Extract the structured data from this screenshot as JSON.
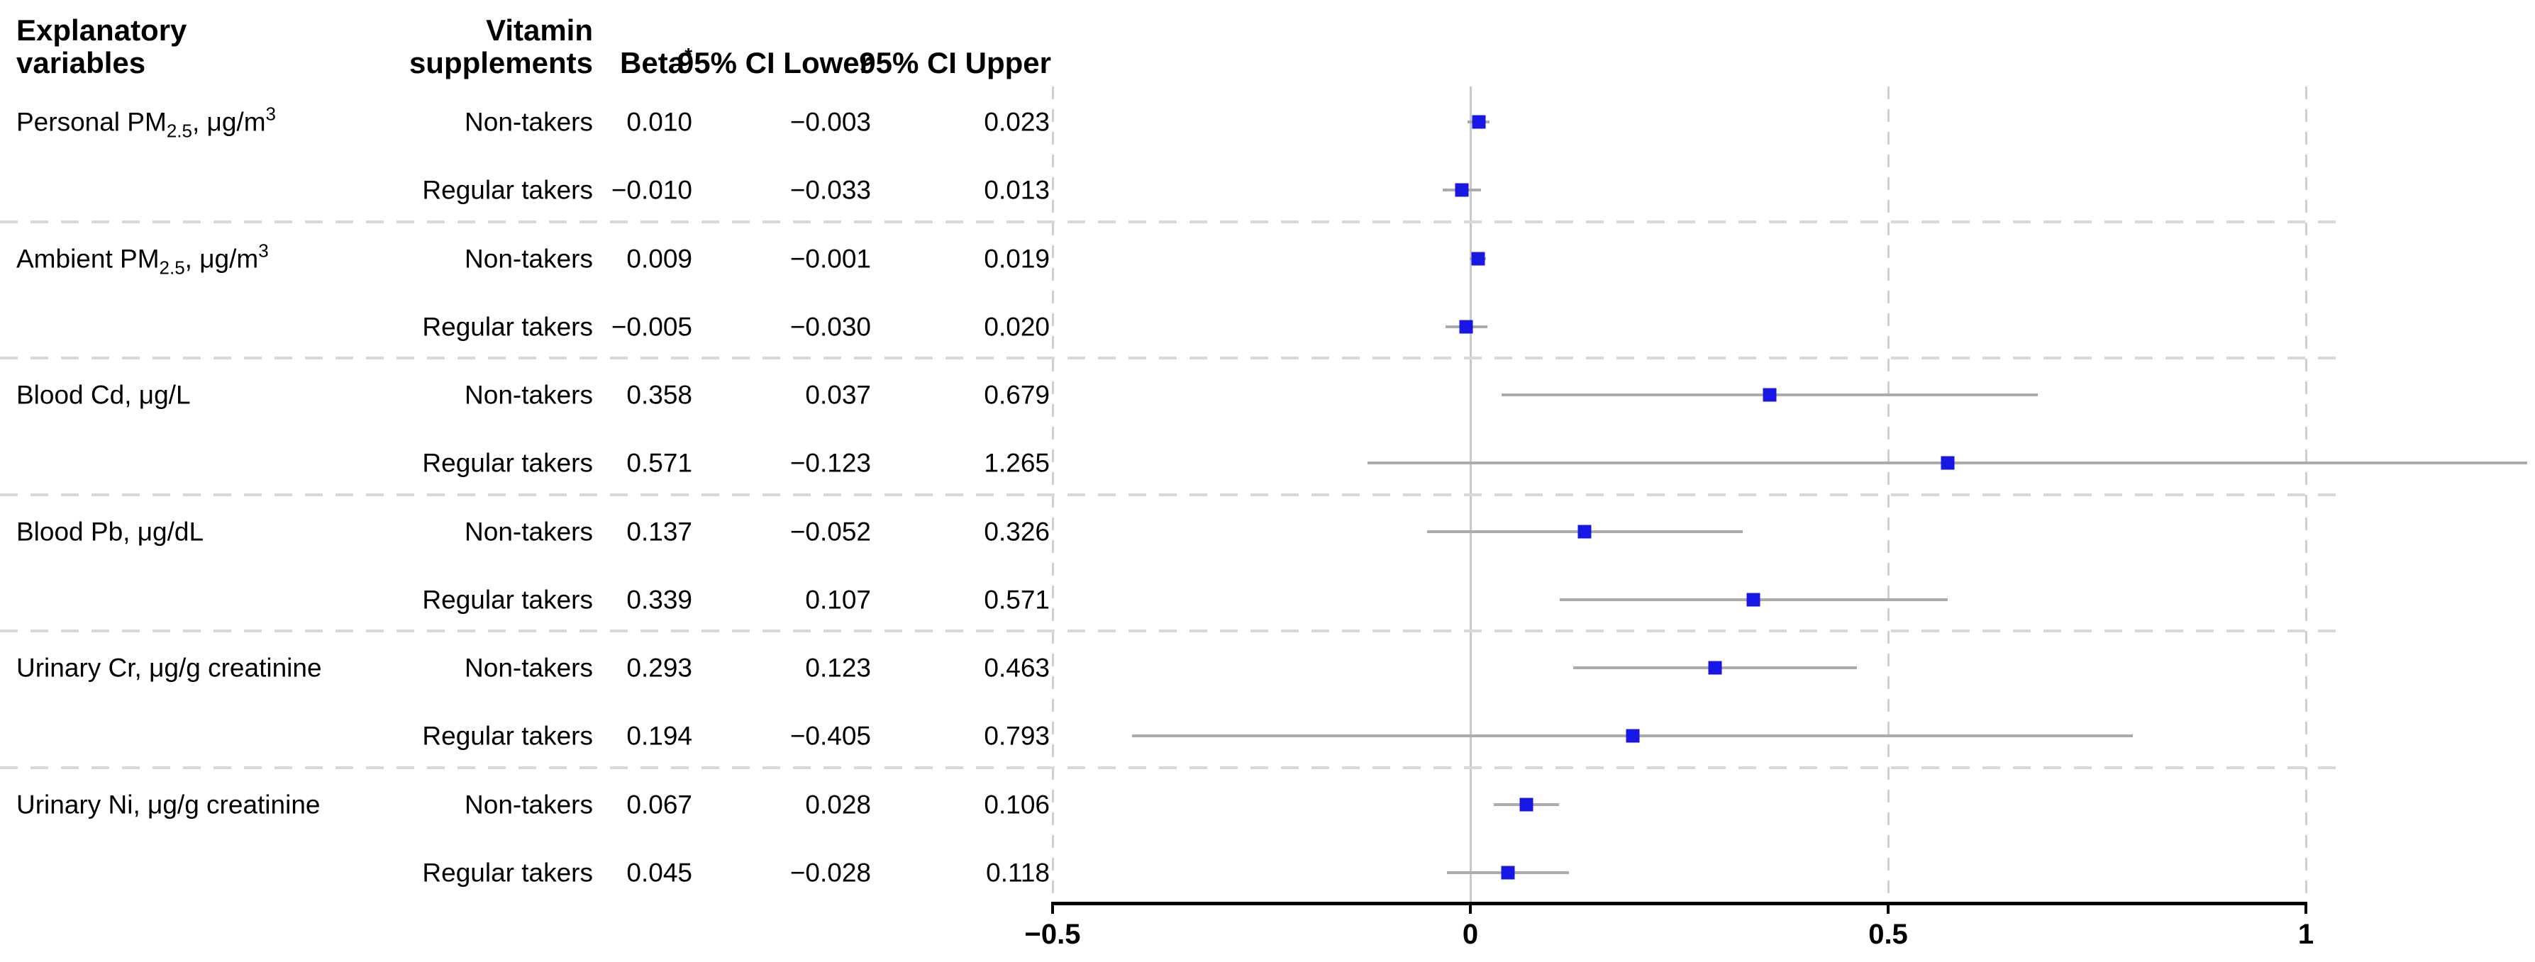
{
  "figure": {
    "header": {
      "explanatory_line1": "Explanatory",
      "explanatory_line2": "variables",
      "vitamin_line1": "Vitamin",
      "vitamin_line2": "supplements",
      "beta": "Beta",
      "beta_sup": "*",
      "ci_lower": "95% CI Lower",
      "ci_upper": "95% CI Upper"
    },
    "colors": {
      "marker": "#1717e6",
      "ci_line": "#ababab",
      "zero_line": "#c8c8c8",
      "grid_dash": "#cfcfcf",
      "separator": "#d8d8d8",
      "axis": "#000000",
      "text": "#000000"
    }
  },
  "chart_data": {
    "type": "forest",
    "title": "",
    "xlabel": "",
    "ylabel": "",
    "x_axis": {
      "tick_values": [
        -0.5,
        0,
        0.5,
        1
      ],
      "tick_labels": [
        "−0.5",
        "0",
        "0.5",
        "1"
      ],
      "range": [
        -0.5,
        1.27
      ],
      "reference_line": 0,
      "grid": "dashed vertical lines at -0.5, 0.5 and 1; solid light line at 0; dashed horizontal separators between variable groups"
    },
    "legend": null,
    "groups": [
      {
        "variable": {
          "pre": "Personal PM",
          "sub": "2.5",
          "mid": ", μg/m",
          "sup": "3"
        },
        "rows": [
          {
            "group": "Non-takers",
            "beta": 0.01,
            "ci_lower": -0.003,
            "ci_upper": 0.023,
            "beta_label": "0.010",
            "ci_lower_label": "−0.003",
            "ci_upper_label": "0.023"
          },
          {
            "group": "Regular takers",
            "beta": -0.01,
            "ci_lower": -0.033,
            "ci_upper": 0.013,
            "beta_label": "−0.010",
            "ci_lower_label": "−0.033",
            "ci_upper_label": "0.013"
          }
        ]
      },
      {
        "variable": {
          "pre": "Ambient PM",
          "sub": "2.5",
          "mid": ", μg/m",
          "sup": "3"
        },
        "rows": [
          {
            "group": "Non-takers",
            "beta": 0.009,
            "ci_lower": -0.001,
            "ci_upper": 0.019,
            "beta_label": "0.009",
            "ci_lower_label": "−0.001",
            "ci_upper_label": "0.019"
          },
          {
            "group": "Regular takers",
            "beta": -0.005,
            "ci_lower": -0.03,
            "ci_upper": 0.02,
            "beta_label": "−0.005",
            "ci_lower_label": "−0.030",
            "ci_upper_label": "0.020"
          }
        ]
      },
      {
        "variable": {
          "pre": "Blood Cd, μg/L",
          "sub": "",
          "mid": "",
          "sup": ""
        },
        "rows": [
          {
            "group": "Non-takers",
            "beta": 0.358,
            "ci_lower": 0.037,
            "ci_upper": 0.679,
            "beta_label": "0.358",
            "ci_lower_label": "0.037",
            "ci_upper_label": "0.679"
          },
          {
            "group": "Regular takers",
            "beta": 0.571,
            "ci_lower": -0.123,
            "ci_upper": 1.265,
            "beta_label": "0.571",
            "ci_lower_label": "−0.123",
            "ci_upper_label": "1.265"
          }
        ]
      },
      {
        "variable": {
          "pre": "Blood Pb, μg/dL",
          "sub": "",
          "mid": "",
          "sup": ""
        },
        "rows": [
          {
            "group": "Non-takers",
            "beta": 0.137,
            "ci_lower": -0.052,
            "ci_upper": 0.326,
            "beta_label": "0.137",
            "ci_lower_label": "−0.052",
            "ci_upper_label": "0.326"
          },
          {
            "group": "Regular takers",
            "beta": 0.339,
            "ci_lower": 0.107,
            "ci_upper": 0.571,
            "beta_label": "0.339",
            "ci_lower_label": "0.107",
            "ci_upper_label": "0.571"
          }
        ]
      },
      {
        "variable": {
          "pre": "Urinary Cr, μg/g creatinine",
          "sub": "",
          "mid": "",
          "sup": ""
        },
        "rows": [
          {
            "group": "Non-takers",
            "beta": 0.293,
            "ci_lower": 0.123,
            "ci_upper": 0.463,
            "beta_label": "0.293",
            "ci_lower_label": "0.123",
            "ci_upper_label": "0.463"
          },
          {
            "group": "Regular takers",
            "beta": 0.194,
            "ci_lower": -0.405,
            "ci_upper": 0.793,
            "beta_label": "0.194",
            "ci_lower_label": "−0.405",
            "ci_upper_label": "0.793"
          }
        ]
      },
      {
        "variable": {
          "pre": "Urinary Ni, μg/g creatinine",
          "sub": "",
          "mid": "",
          "sup": ""
        },
        "rows": [
          {
            "group": "Non-takers",
            "beta": 0.067,
            "ci_lower": 0.028,
            "ci_upper": 0.106,
            "beta_label": "0.067",
            "ci_lower_label": "0.028",
            "ci_upper_label": "0.106"
          },
          {
            "group": "Regular takers",
            "beta": 0.045,
            "ci_lower": -0.028,
            "ci_upper": 0.118,
            "beta_label": "0.045",
            "ci_lower_label": "−0.028",
            "ci_upper_label": "0.118"
          }
        ]
      }
    ]
  }
}
